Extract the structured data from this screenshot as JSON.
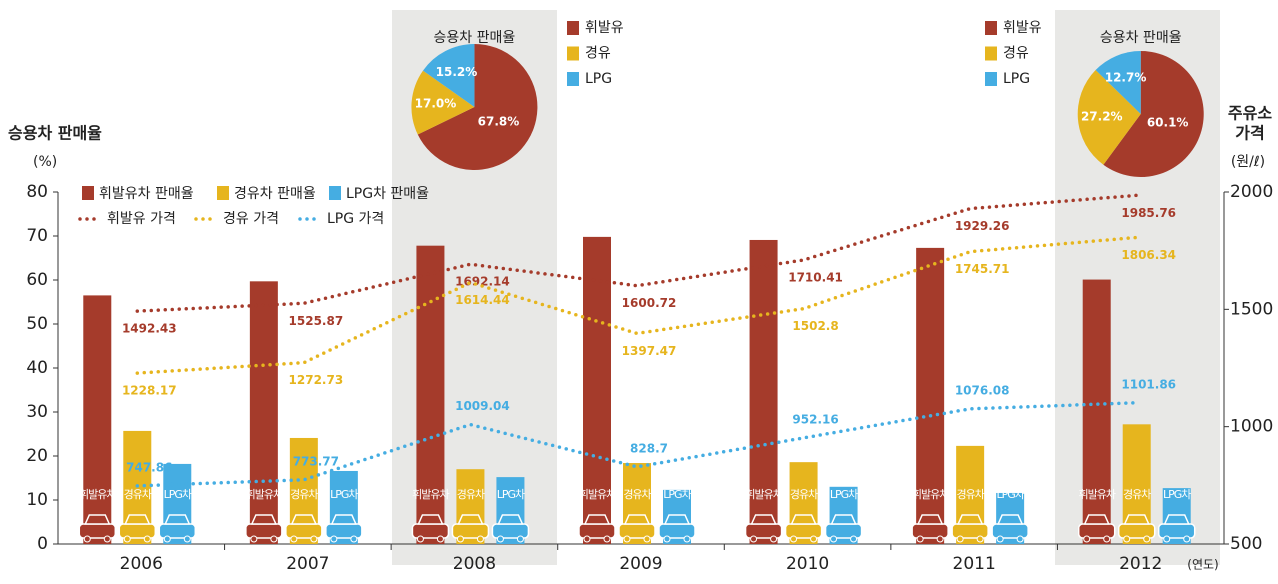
{
  "chart_data": {
    "type": "bar",
    "categories": [
      "2006",
      "2007",
      "2008",
      "2009",
      "2010",
      "2011",
      "2012"
    ],
    "x_unit": "(연도)",
    "y_label": "승용차 판매율",
    "y_unit": "(%)",
    "y2_label": [
      "주유소",
      "가격"
    ],
    "y2_unit": "(원/ℓ)",
    "ylim": [
      0,
      80
    ],
    "yticks": [
      0,
      10,
      20,
      30,
      40,
      50,
      60,
      70,
      80
    ],
    "y2lim": [
      500,
      2000
    ],
    "y2ticks": [
      500,
      1000,
      1500,
      2000
    ],
    "series": [
      {
        "name": "휘발유차 판매율",
        "bar_label": "휘발유차",
        "type": "bar",
        "color": "#a53b2b",
        "values": [
          56.5,
          59.7,
          67.8,
          69.8,
          69.1,
          67.3,
          60.1
        ]
      },
      {
        "name": "경유차 판매율",
        "bar_label": "경유차",
        "type": "bar",
        "color": "#e6b51e",
        "values": [
          25.7,
          24.1,
          17.0,
          18.4,
          18.6,
          22.3,
          27.2
        ]
      },
      {
        "name": "LPG차 판매율",
        "bar_label": "LPG차",
        "type": "bar",
        "color": "#45ade2",
        "values": [
          18.2,
          16.6,
          15.2,
          12.3,
          13.0,
          11.6,
          12.7
        ]
      },
      {
        "name": "휘발유 가격",
        "type": "line",
        "axis": "y2",
        "color": "#a53b2b",
        "values": [
          1492.43,
          1525.87,
          1692.14,
          1600.72,
          1710.41,
          1929.26,
          1985.76
        ]
      },
      {
        "name": "경유 가격",
        "type": "line",
        "axis": "y2",
        "color": "#e6b51e",
        "values": [
          1228.17,
          1272.73,
          1614.44,
          1397.47,
          1502.8,
          1745.71,
          1806.34
        ]
      },
      {
        "name": "LPG 가격",
        "type": "line",
        "axis": "y2",
        "color": "#45ade2",
        "values": [
          747.86,
          773.77,
          1009.04,
          828.7,
          952.16,
          1076.08,
          1101.86
        ]
      }
    ],
    "pies": [
      {
        "type": "pie",
        "title": "승용차 판매율",
        "category": 2,
        "categories": [
          "휘발유",
          "경유",
          "LPG"
        ],
        "values": [
          67.8,
          17.0,
          15.2
        ],
        "value_labels": [
          "67.8%",
          "17.0%",
          "15.2%"
        ]
      },
      {
        "type": "pie",
        "title": "승용차 판매율",
        "category": 6,
        "categories": [
          "휘발유",
          "경유",
          "LPG"
        ],
        "values": [
          60.1,
          27.2,
          12.7
        ],
        "value_labels": [
          "60.1%",
          "27.2%",
          "12.7%"
        ]
      }
    ]
  }
}
